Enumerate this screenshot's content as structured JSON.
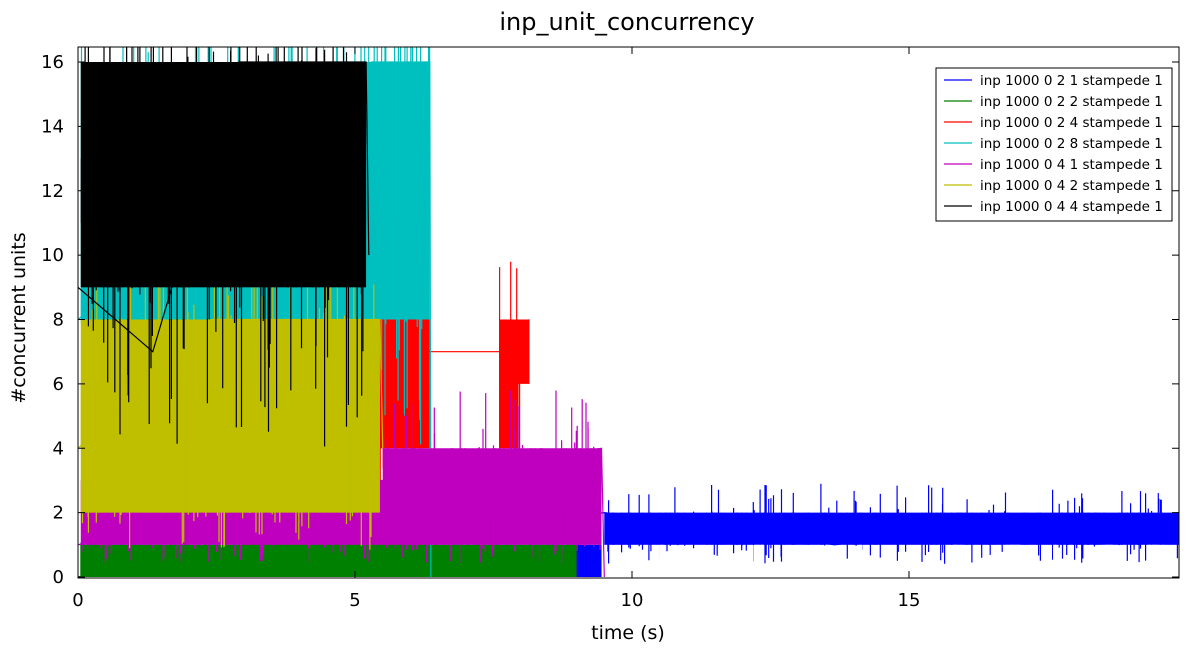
{
  "chart_data": {
    "type": "line",
    "title": "inp_unit_concurrency",
    "xlabel": "time (s)",
    "ylabel": "#concurrent units",
    "xlim": [
      0,
      20
    ],
    "ylim": [
      0,
      16
    ],
    "x_ticks": [
      0,
      5,
      10,
      15
    ],
    "y_ticks": [
      0,
      2,
      4,
      6,
      8,
      10,
      12,
      14,
      16
    ],
    "grid": false,
    "legend_position": "top-right",
    "series": [
      {
        "name": "inp 1000 0 2 1 stampede 1",
        "color": "#0000ff",
        "bands": [
          {
            "x0": 0.05,
            "x1": 9.45,
            "lo": 0,
            "hi": 1
          },
          {
            "x0": 9.5,
            "x1": 19.9,
            "lo": 1,
            "hi": 2
          }
        ],
        "gaps": [
          10.5,
          12.2,
          13.5,
          14.1,
          15.8,
          16.7,
          17.6,
          18.5,
          19.3
        ],
        "points": [
          [
            0.0,
            0
          ],
          [
            5.5,
            1
          ],
          [
            9.5,
            2
          ],
          [
            13.65,
            1
          ],
          [
            19.9,
            2
          ]
        ]
      },
      {
        "name": "inp 1000 0 2 2 stampede 1",
        "color": "#008000",
        "bands": [
          {
            "x0": 0.05,
            "x1": 9.0,
            "lo": 0,
            "hi": 1
          }
        ],
        "points": [
          [
            0.0,
            0
          ],
          [
            3.0,
            1
          ],
          [
            6.3,
            1
          ],
          [
            9.0,
            2
          ]
        ]
      },
      {
        "name": "inp 1000 0 2 4 stampede 1",
        "color": "#ff0000",
        "bands": [
          {
            "x0": 5.45,
            "x1": 6.35,
            "lo": 4,
            "hi": 8
          },
          {
            "x0": 7.6,
            "x1": 7.95,
            "lo": 4,
            "hi": 7
          },
          {
            "x0": 7.6,
            "x1": 8.15,
            "lo": 6,
            "hi": 8
          }
        ],
        "points": [
          [
            2.4,
            8
          ],
          [
            5.5,
            8
          ],
          [
            6.35,
            7
          ],
          [
            7.6,
            7
          ],
          [
            8.15,
            8
          ]
        ]
      },
      {
        "name": "inp 1000 0 2 8 stampede 1",
        "color": "#00bfbf",
        "bands": [
          {
            "x0": 0.05,
            "x1": 6.35,
            "lo": 8,
            "hi": 16
          },
          {
            "x0": 5.15,
            "x1": 6.35,
            "lo": 11,
            "hi": 16
          }
        ],
        "points": [
          [
            0.0,
            8
          ],
          [
            5.3,
            16
          ],
          [
            6.35,
            16
          ],
          [
            6.37,
            0
          ]
        ]
      },
      {
        "name": "inp 1000 0 4 1 stampede 1",
        "color": "#bf00bf",
        "bands": [
          {
            "x0": 0.05,
            "x1": 9.45,
            "lo": 1,
            "hi": 3
          },
          {
            "x0": 5.5,
            "x1": 9.45,
            "lo": 2,
            "hi": 4
          }
        ],
        "points": [
          [
            0.0,
            1
          ],
          [
            5.5,
            3
          ],
          [
            9.45,
            4
          ],
          [
            9.5,
            0
          ]
        ]
      },
      {
        "name": "inp 1000 0 4 2 stampede 1",
        "color": "#bfbf00",
        "bands": [
          {
            "x0": 0.05,
            "x1": 5.45,
            "lo": 4,
            "hi": 8
          },
          {
            "x0": 0.05,
            "x1": 5.45,
            "lo": 2,
            "hi": 6
          }
        ],
        "points": [
          [
            0.0,
            4
          ],
          [
            2.4,
            8
          ],
          [
            5.45,
            8
          ],
          [
            5.5,
            4
          ]
        ]
      },
      {
        "name": "inp 1000 0 4 4 stampede 1",
        "color": "#000000",
        "bands": [
          {
            "x0": 0.05,
            "x1": 5.2,
            "lo": 11,
            "hi": 16
          },
          {
            "x0": 0.05,
            "x1": 5.2,
            "lo": 9,
            "hi": 13
          }
        ],
        "points": [
          [
            0.0,
            9
          ],
          [
            1.35,
            7
          ],
          [
            2.9,
            16
          ],
          [
            5.2,
            16
          ],
          [
            5.25,
            10
          ]
        ]
      }
    ]
  }
}
